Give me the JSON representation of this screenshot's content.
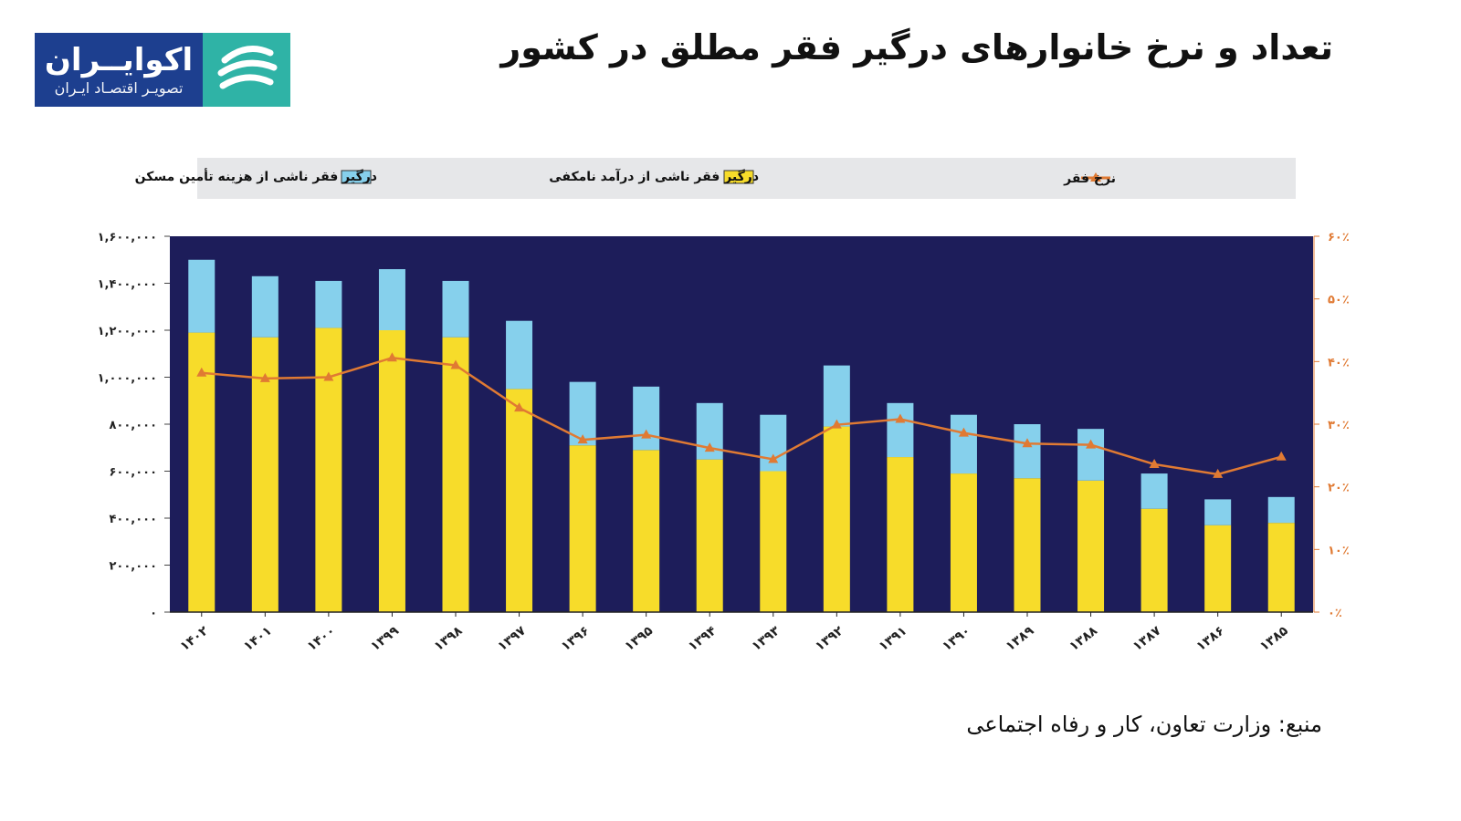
{
  "header": {
    "title": "تعداد و نرخ خانوارهای درگیر فقر مطلق در کشور",
    "logo_name": "اکوایــران",
    "logo_sub": "تصویـر اقتصـاد ایـران"
  },
  "footer": {
    "source": "منبع: وزارت تعاون، کار و رفاه اجتماعی"
  },
  "chart_data": {
    "type": "bar",
    "stacked": true,
    "categories": [
      "۱۴۰۲",
      "۱۴۰۱",
      "۱۴۰۰",
      "۱۳۹۹",
      "۱۳۹۸",
      "۱۳۹۷",
      "۱۳۹۶",
      "۱۳۹۵",
      "۱۳۹۴",
      "۱۳۹۳",
      "۱۳۹۲",
      "۱۳۹۱",
      "۱۳۹۰",
      "۱۳۸۹",
      "۱۳۸۸",
      "۱۳۸۷",
      "۱۳۸۶",
      "۱۳۸۵"
    ],
    "series": [
      {
        "name": "درگیر فقر ناشی از درآمد نامکفی",
        "color": "#f7dc2a",
        "values": [
          1190000,
          1170000,
          1210000,
          1200000,
          1170000,
          950000,
          710000,
          690000,
          650000,
          600000,
          790000,
          660000,
          590000,
          570000,
          560000,
          440000,
          370000,
          380000
        ]
      },
      {
        "name": "درگیر فقر ناشی از هزینه تأمین مسکن",
        "color": "#86d0ec",
        "values": [
          310000,
          260000,
          200000,
          260000,
          240000,
          290000,
          270000,
          270000,
          240000,
          240000,
          260000,
          230000,
          250000,
          230000,
          220000,
          150000,
          110000,
          110000
        ]
      },
      {
        "name": "نرخ فقر",
        "color": "#e07a33",
        "axis": "right",
        "values": [
          38.2,
          37.3,
          37.5,
          40.6,
          39.4,
          32.6,
          27.5,
          28.3,
          26.2,
          24.4,
          29.9,
          30.8,
          28.6,
          26.9,
          26.7,
          23.6,
          22.0,
          24.8
        ]
      }
    ],
    "y_left": {
      "min": 0,
      "max": 1600000,
      "ticks": [
        "۰",
        "۲۰۰,۰۰۰",
        "۴۰۰,۰۰۰",
        "۶۰۰,۰۰۰",
        "۸۰۰,۰۰۰",
        "۱,۰۰۰,۰۰۰",
        "۱,۲۰۰,۰۰۰",
        "۱,۴۰۰,۰۰۰",
        "۱,۶۰۰,۰۰۰"
      ]
    },
    "y_right": {
      "min": 0,
      "max": 60,
      "ticks": [
        "۰٪",
        "۱۰٪",
        "۲۰٪",
        "۳۰٪",
        "۴۰٪",
        "۵۰٪",
        "۶۰٪"
      ]
    },
    "legend_position": "top",
    "plot_background": "#1d1d5a"
  }
}
